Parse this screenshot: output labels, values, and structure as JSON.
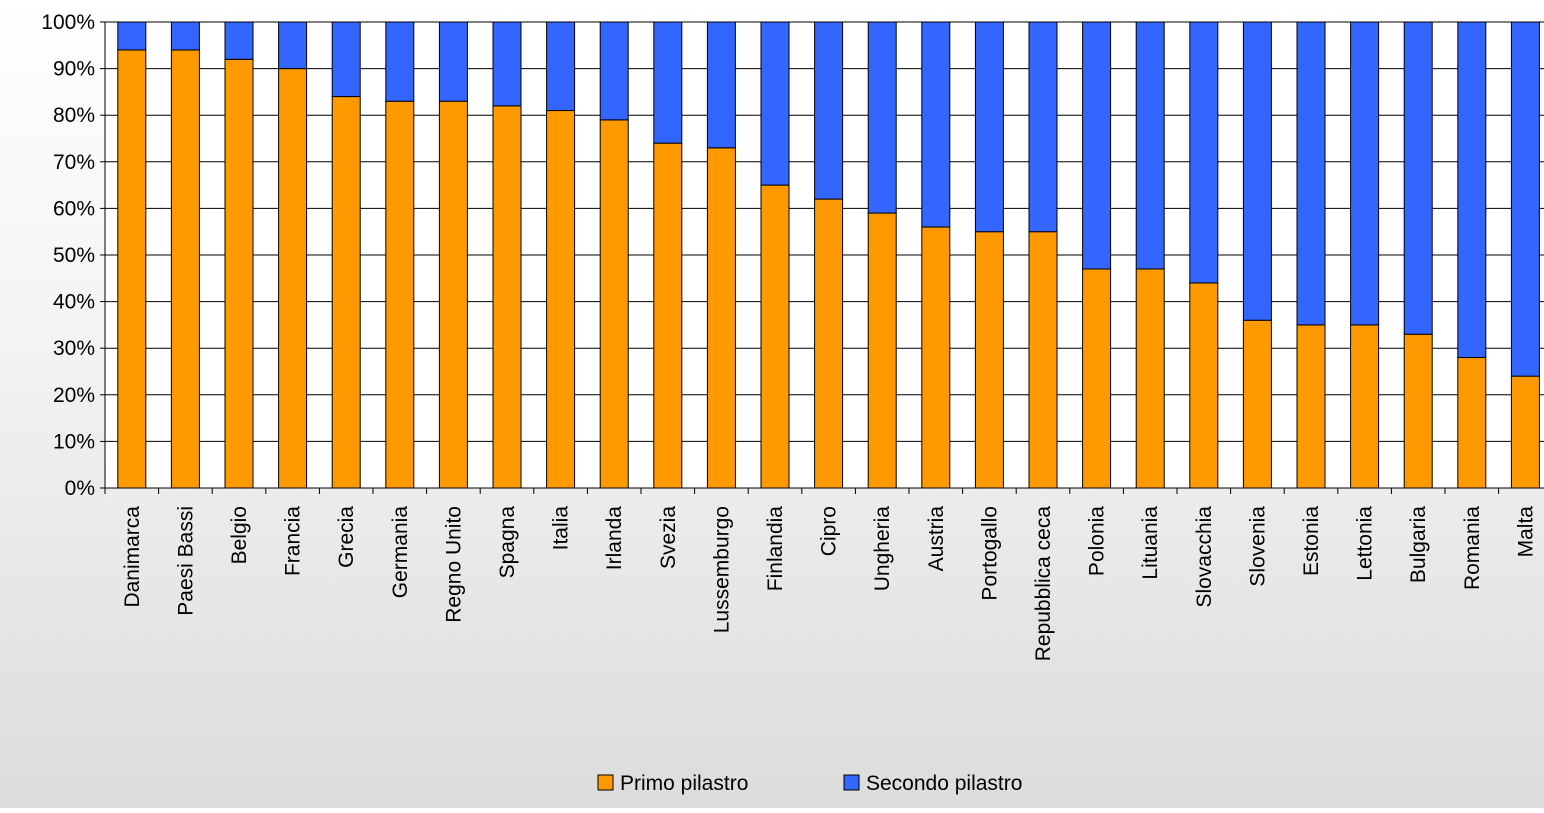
{
  "chart_data": {
    "type": "bar",
    "stacked": true,
    "percent_stacked": true,
    "title": "",
    "xlabel": "",
    "ylabel": "",
    "ylim": [
      0,
      100
    ],
    "yticks": [
      "0%",
      "10%",
      "20%",
      "30%",
      "40%",
      "50%",
      "60%",
      "70%",
      "80%",
      "90%",
      "100%"
    ],
    "grid": true,
    "legend_position": "bottom",
    "categories": [
      "Danimarca",
      "Paesi Bassi",
      "Belgio",
      "Francia",
      "Grecia",
      "Germania",
      "Regno Unito",
      "Spagna",
      "Italia",
      "Irlanda",
      "Svezia",
      "Lussemburgo",
      "Finlandia",
      "Cipro",
      "Ungheria",
      "Austria",
      "Portogallo",
      "Repubblica ceca",
      "Polonia",
      "Lituania",
      "Slovacchia",
      "Slovenia",
      "Estonia",
      "Lettonia",
      "Bulgaria",
      "Romania",
      "Malta"
    ],
    "series": [
      {
        "name": "Primo pilastro",
        "color": "#ff9900",
        "values": [
          94,
          94,
          92,
          90,
          84,
          83,
          83,
          82,
          81,
          79,
          74,
          73,
          65,
          62,
          59,
          56,
          55,
          55,
          47,
          47,
          44,
          36,
          35,
          35,
          33,
          28,
          24
        ]
      },
      {
        "name": "Secondo pilastro",
        "color": "#3366ff",
        "values": [
          6,
          6,
          8,
          10,
          16,
          17,
          17,
          18,
          19,
          21,
          26,
          27,
          35,
          38,
          41,
          44,
          45,
          45,
          53,
          53,
          56,
          64,
          65,
          65,
          67,
          72,
          76
        ]
      }
    ]
  }
}
